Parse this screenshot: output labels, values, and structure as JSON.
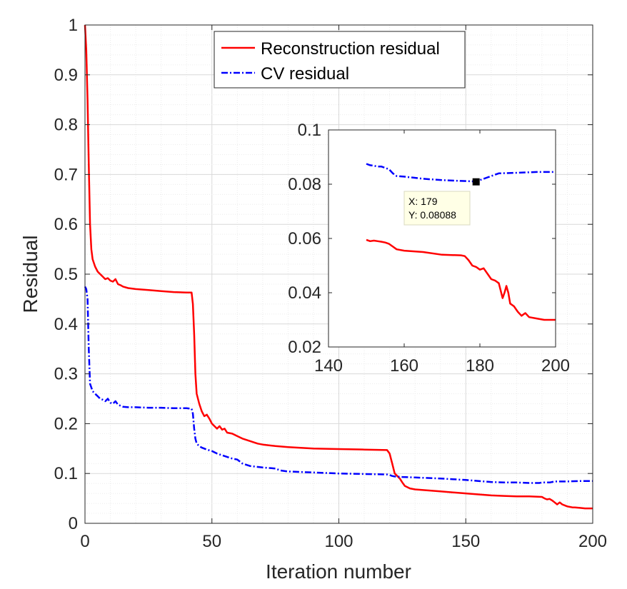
{
  "chart_data": [
    {
      "type": "line",
      "title": "",
      "xlabel": "Iteration number",
      "ylabel": "Residual",
      "xlim": [
        0,
        200
      ],
      "ylim": [
        0,
        1
      ],
      "xticks": [
        "0",
        "50",
        "100",
        "150",
        "200"
      ],
      "yticks": [
        "0",
        "0.1",
        "0.2",
        "0.3",
        "0.4",
        "0.5",
        "0.6",
        "0.7",
        "0.8",
        "0.9",
        "1"
      ],
      "grid": true,
      "minor_grid": true,
      "legend_position": "top-center",
      "series": [
        {
          "name": "Reconstruction residual",
          "color": "#ff0000",
          "style": "solid",
          "x": [
            0,
            0.5,
            1,
            1.5,
            2,
            2.5,
            3,
            4,
            5,
            6,
            7,
            8,
            9,
            10,
            11,
            12,
            13,
            14,
            15,
            17,
            20,
            25,
            30,
            35,
            40,
            42,
            42.5,
            43,
            43.5,
            44,
            45,
            46,
            47,
            48,
            49,
            50,
            51,
            52,
            53,
            54,
            55,
            56,
            58,
            60,
            62,
            65,
            68,
            70,
            75,
            80,
            90,
            100,
            110,
            119,
            120,
            121,
            122,
            123,
            124,
            125,
            126,
            128,
            130,
            135,
            140,
            145,
            150,
            155,
            160,
            165,
            170,
            175,
            180,
            181,
            182,
            183,
            184,
            185,
            186,
            187,
            188,
            189,
            190,
            191,
            192,
            193,
            195,
            197,
            200
          ],
          "y": [
            1.0,
            0.95,
            0.85,
            0.72,
            0.6,
            0.55,
            0.53,
            0.515,
            0.505,
            0.5,
            0.495,
            0.49,
            0.492,
            0.487,
            0.485,
            0.49,
            0.48,
            0.478,
            0.475,
            0.472,
            0.47,
            0.468,
            0.466,
            0.464,
            0.463,
            0.463,
            0.44,
            0.38,
            0.3,
            0.26,
            0.24,
            0.225,
            0.215,
            0.218,
            0.21,
            0.2,
            0.195,
            0.19,
            0.195,
            0.188,
            0.19,
            0.182,
            0.18,
            0.175,
            0.17,
            0.165,
            0.16,
            0.158,
            0.155,
            0.153,
            0.15,
            0.149,
            0.148,
            0.147,
            0.14,
            0.12,
            0.1,
            0.095,
            0.09,
            0.082,
            0.075,
            0.07,
            0.068,
            0.066,
            0.064,
            0.062,
            0.06,
            0.058,
            0.056,
            0.055,
            0.054,
            0.054,
            0.053,
            0.05,
            0.048,
            0.049,
            0.046,
            0.042,
            0.038,
            0.042,
            0.038,
            0.036,
            0.034,
            0.033,
            0.032,
            0.032,
            0.031,
            0.03,
            0.03
          ]
        },
        {
          "name": "CV residual",
          "color": "#0000ff",
          "style": "dashdot",
          "x": [
            0,
            0.5,
            1,
            1.5,
            2,
            3,
            4,
            5,
            6,
            7,
            8,
            9,
            10,
            11,
            12,
            13,
            14,
            15,
            17,
            20,
            25,
            30,
            35,
            40,
            42,
            42.5,
            43,
            43.5,
            44,
            45,
            46,
            48,
            50,
            52,
            55,
            58,
            60,
            62,
            65,
            70,
            75,
            77,
            80,
            90,
            100,
            110,
            119,
            120,
            121,
            122,
            125,
            130,
            140,
            150,
            155,
            160,
            165,
            170,
            175,
            179,
            180,
            183,
            185,
            190,
            195,
            200
          ],
          "y": [
            0.475,
            0.47,
            0.45,
            0.35,
            0.28,
            0.265,
            0.26,
            0.255,
            0.25,
            0.248,
            0.245,
            0.25,
            0.242,
            0.24,
            0.245,
            0.238,
            0.236,
            0.234,
            0.233,
            0.233,
            0.232,
            0.232,
            0.231,
            0.231,
            0.23,
            0.22,
            0.19,
            0.17,
            0.16,
            0.155,
            0.152,
            0.148,
            0.145,
            0.14,
            0.135,
            0.13,
            0.128,
            0.12,
            0.115,
            0.112,
            0.11,
            0.106,
            0.104,
            0.102,
            0.1,
            0.099,
            0.098,
            0.097,
            0.095,
            0.094,
            0.093,
            0.092,
            0.09,
            0.087,
            0.085,
            0.083,
            0.082,
            0.082,
            0.081,
            0.081,
            0.082,
            0.082,
            0.084,
            0.084,
            0.085,
            0.085
          ]
        }
      ]
    },
    {
      "type": "line",
      "title": "",
      "xlim": [
        140,
        200
      ],
      "ylim": [
        0.02,
        0.1
      ],
      "xticks": [
        "140",
        "160",
        "180",
        "200"
      ],
      "yticks": [
        "0.02",
        "0.04",
        "0.06",
        "0.08",
        "0.1"
      ],
      "grid": false,
      "series": [
        {
          "name": "Reconstruction residual",
          "color": "#ff0000",
          "style": "solid",
          "x": [
            150,
            151,
            152,
            153,
            154,
            155,
            156,
            157,
            158,
            160,
            165,
            170,
            175,
            176,
            177,
            178,
            179,
            180,
            181,
            182,
            183,
            184,
            185,
            186,
            186.5,
            187,
            187.5,
            188,
            189,
            190,
            191,
            192,
            193,
            195,
            197,
            200
          ],
          "y": [
            0.0595,
            0.059,
            0.0592,
            0.059,
            0.0588,
            0.0585,
            0.058,
            0.057,
            0.056,
            0.0555,
            0.055,
            0.054,
            0.0538,
            0.0535,
            0.052,
            0.05,
            0.0495,
            0.0485,
            0.049,
            0.047,
            0.045,
            0.0445,
            0.0435,
            0.038,
            0.04,
            0.0425,
            0.04,
            0.036,
            0.035,
            0.033,
            0.0315,
            0.0325,
            0.031,
            0.0305,
            0.03,
            0.03
          ]
        },
        {
          "name": "CV residual",
          "color": "#0000ff",
          "style": "dashdot",
          "x": [
            150,
            151,
            152,
            153,
            154,
            155,
            156,
            157,
            158,
            160,
            165,
            170,
            175,
            179,
            180,
            181,
            182,
            183,
            184,
            185,
            190,
            195,
            200
          ],
          "y": [
            0.0875,
            0.087,
            0.0868,
            0.0865,
            0.0865,
            0.086,
            0.0855,
            0.084,
            0.083,
            0.0828,
            0.082,
            0.0815,
            0.0812,
            0.081,
            0.0815,
            0.082,
            0.0825,
            0.083,
            0.0835,
            0.084,
            0.0842,
            0.0845,
            0.0845
          ]
        }
      ],
      "datatip": {
        "x_text": "X: 179",
        "y_text": "Y: 0.08088",
        "x": 179,
        "y": 0.08088
      }
    }
  ]
}
